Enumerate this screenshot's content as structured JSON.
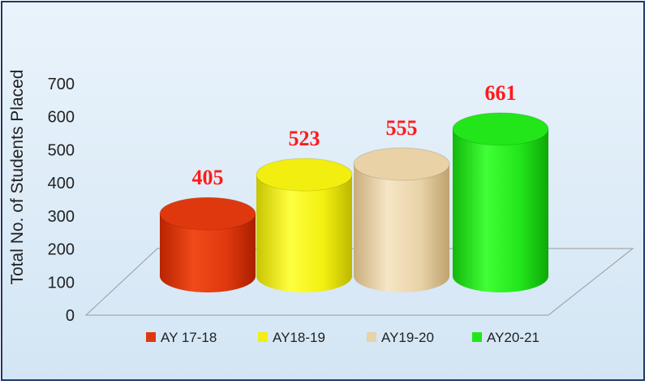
{
  "chart_data": {
    "type": "bar",
    "categories": [
      "AY 17-18",
      "AY18-19",
      "AY19-20",
      "AY20-21"
    ],
    "values": [
      405,
      523,
      555,
      661
    ],
    "data_labels": [
      "405",
      "523",
      "555",
      "661"
    ],
    "ylabel": "Total No. of Students Placed",
    "xlabel": "",
    "ylim": [
      0,
      700
    ],
    "yticks": [
      "0",
      "100",
      "200",
      "300",
      "400",
      "500",
      "600",
      "700"
    ],
    "grid": false,
    "legend_position": "bottom",
    "bar_style": "3d-cylinder",
    "colors": [
      "#e0380e",
      "#f2ef10",
      "#e8d2a6",
      "#22e61a"
    ],
    "label_color": "#ff1a1a"
  }
}
